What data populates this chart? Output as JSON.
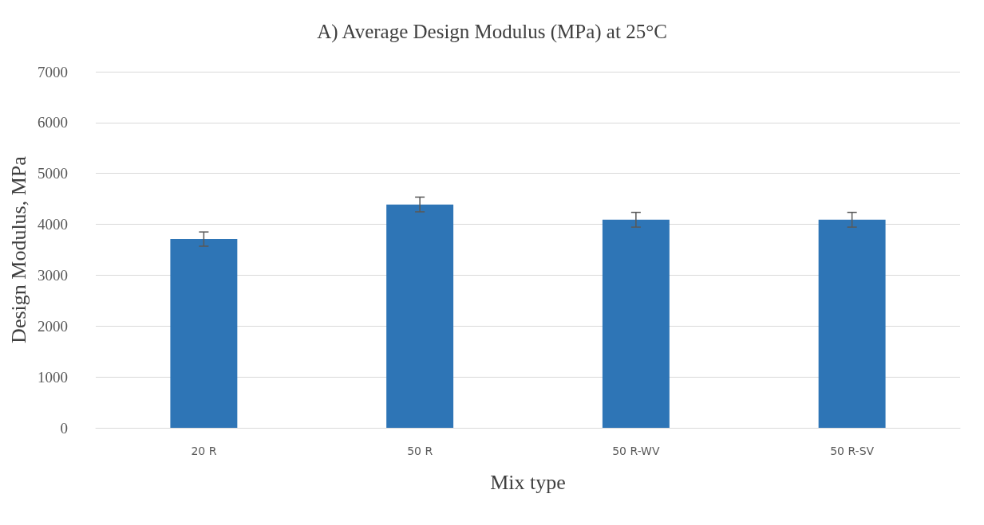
{
  "chart_data": {
    "type": "bar",
    "title": "A) Average Design Modulus (MPa) at 25°C",
    "xlabel": "Mix type",
    "ylabel": "Design Modulus, MPa",
    "categories": [
      "20 R",
      "50 R",
      "50 R-WV",
      "50 R-SV"
    ],
    "values": [
      3710,
      4390,
      4090,
      4090
    ],
    "errors": [
      140,
      145,
      145,
      145
    ],
    "color": "#2e75b6",
    "ylim": [
      0,
      7000
    ],
    "yticks": [
      0,
      1000,
      2000,
      3000,
      4000,
      5000,
      6000,
      7000
    ],
    "grid": "y"
  }
}
